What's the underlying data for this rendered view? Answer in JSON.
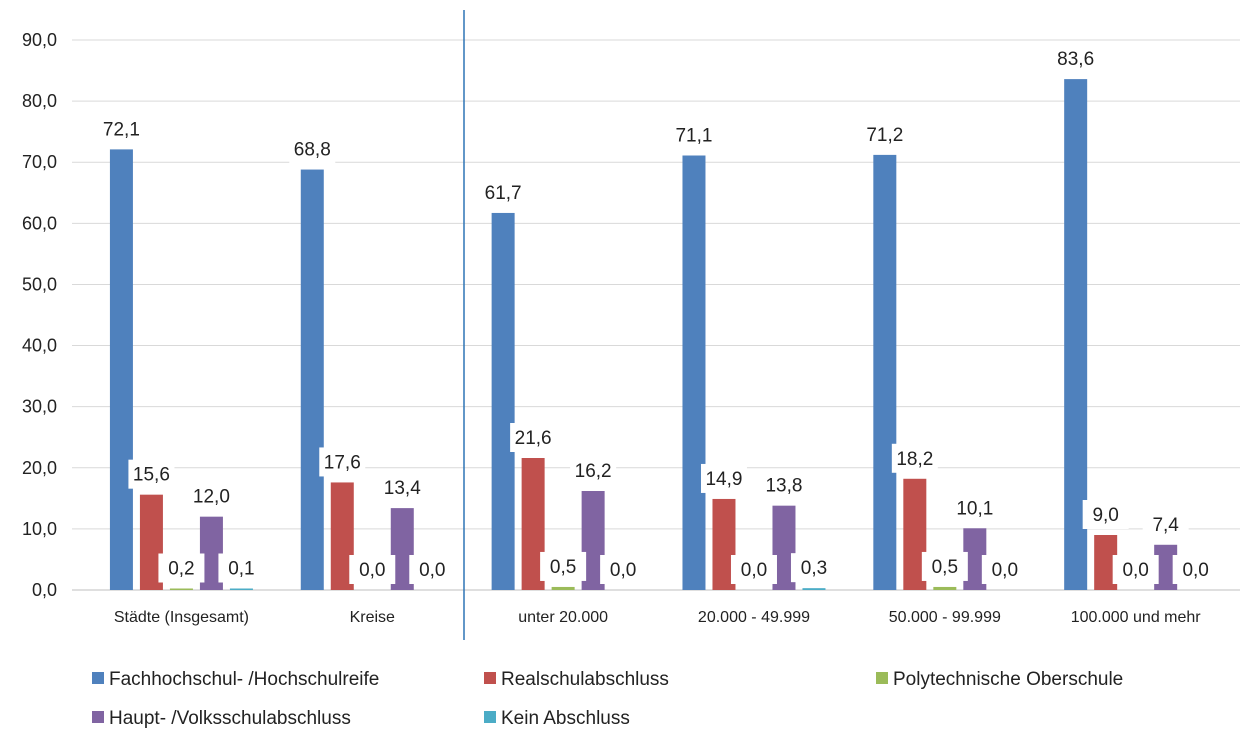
{
  "chart_data": {
    "type": "bar",
    "title": "",
    "xlabel": "",
    "ylabel": "",
    "ylim": [
      0,
      90
    ],
    "yticks": [
      "0,0",
      "10,0",
      "20,0",
      "30,0",
      "40,0",
      "50,0",
      "60,0",
      "70,0",
      "80,0",
      "90,0"
    ],
    "grid": true,
    "legend_position": "bottom",
    "categories": [
      "Städte (Insgesamt)",
      "Kreise",
      "unter 20.000",
      "20.000 - 49.999",
      "50.000 - 99.999",
      "100.000 und mehr"
    ],
    "series": [
      {
        "name": "Fachhochschul- /Hochschulreife",
        "color": "#4f81bd",
        "values": [
          72.1,
          68.8,
          61.7,
          71.1,
          71.2,
          83.6
        ],
        "labels": [
          "72,1",
          "68,8",
          "61,7",
          "71,1",
          "71,2",
          "83,6"
        ]
      },
      {
        "name": "Realschulabschluss",
        "color": "#c0504d",
        "values": [
          15.6,
          17.6,
          21.6,
          14.9,
          18.2,
          9.0
        ],
        "labels": [
          "15,6",
          "17,6",
          "21,6",
          "14,9",
          "18,2",
          "9,0"
        ]
      },
      {
        "name": "Polytechnische Oberschule",
        "color": "#9bbb59",
        "values": [
          0.2,
          0.0,
          0.5,
          0.0,
          0.5,
          0.0
        ],
        "labels": [
          "0,2",
          "0,0",
          "0,5",
          "0,0",
          "0,5",
          "0,0"
        ]
      },
      {
        "name": "Haupt- /Volksschulabschluss",
        "color": "#8064a2",
        "values": [
          12.0,
          13.4,
          16.2,
          13.8,
          10.1,
          7.4
        ],
        "labels": [
          "12,0",
          "13,4",
          "16,2",
          "13,8",
          "10,1",
          "7,4"
        ]
      },
      {
        "name": "Kein Abschluss",
        "color": "#4bacc6",
        "values": [
          0.1,
          0.0,
          0.0,
          0.3,
          0.0,
          0.0
        ],
        "labels": [
          "0,1",
          "0,0",
          "0,0",
          "0,3",
          "0,0",
          "0,0"
        ]
      }
    ],
    "separator_after_category": 1,
    "separator_color": "#2e75b6"
  }
}
